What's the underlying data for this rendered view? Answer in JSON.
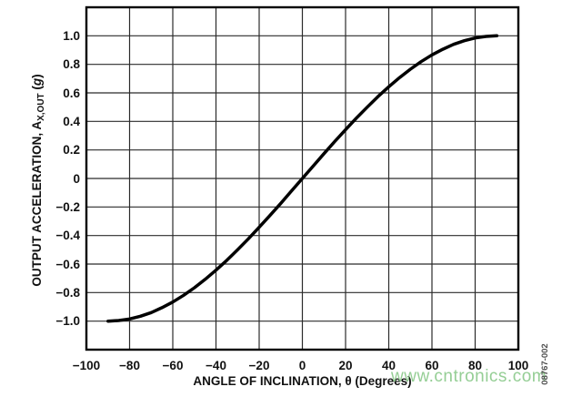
{
  "figure": {
    "watermark": "www.cntronics.com",
    "figure_number": "08767-002",
    "background": "#ffffff"
  },
  "chart_data": {
    "type": "line",
    "title": "",
    "xlabel": "ANGLE OF INCLINATION, θ (Degrees)",
    "ylabel": "OUTPUT ACCELERATION, AX,OUT (g)",
    "ylabel_parts": {
      "main": "OUTPUT ACCELERATION, A",
      "sub": "X,OUT",
      "unit_pre": " (",
      "unit": "g",
      "unit_post": ")"
    },
    "xlim": [
      -100,
      100
    ],
    "ylim": [
      -1.2,
      1.2
    ],
    "grid": true,
    "legend": "none",
    "line_color": "#000000",
    "grid_color": "#2b2b2b",
    "frame_color": "#000000",
    "xticks": [
      {
        "value": -100,
        "label": "−100"
      },
      {
        "value": -80,
        "label": "−80"
      },
      {
        "value": -60,
        "label": "−60"
      },
      {
        "value": -40,
        "label": "−40"
      },
      {
        "value": -20,
        "label": "−20"
      },
      {
        "value": 0,
        "label": "0"
      },
      {
        "value": 20,
        "label": "20"
      },
      {
        "value": 40,
        "label": "40"
      },
      {
        "value": 60,
        "label": "60"
      },
      {
        "value": 80,
        "label": "80"
      },
      {
        "value": 100,
        "label": "100"
      }
    ],
    "yticks": [
      {
        "value": 1.0,
        "label": "1.0"
      },
      {
        "value": 0.8,
        "label": "0.8"
      },
      {
        "value": 0.6,
        "label": "0.6"
      },
      {
        "value": 0.4,
        "label": "0.4"
      },
      {
        "value": 0.2,
        "label": "0.2"
      },
      {
        "value": 0.0,
        "label": "0"
      },
      {
        "value": -0.2,
        "label": "−0.2"
      },
      {
        "value": -0.4,
        "label": "−0.4"
      },
      {
        "value": -0.6,
        "label": "−0.6"
      },
      {
        "value": -0.8,
        "label": "−0.8"
      },
      {
        "value": -1.0,
        "label": "−1.0"
      }
    ],
    "series": [
      {
        "name": "output-acceleration-curve",
        "x": [
          -90,
          -85,
          -80,
          -75,
          -70,
          -65,
          -60,
          -55,
          -50,
          -45,
          -40,
          -35,
          -30,
          -25,
          -20,
          -15,
          -10,
          -5,
          0,
          5,
          10,
          15,
          20,
          25,
          30,
          35,
          40,
          45,
          50,
          55,
          60,
          65,
          70,
          75,
          80,
          85,
          90
        ],
        "y": [
          -1.0,
          -0.996,
          -0.985,
          -0.966,
          -0.94,
          -0.906,
          -0.866,
          -0.819,
          -0.766,
          -0.707,
          -0.643,
          -0.574,
          -0.5,
          -0.423,
          -0.342,
          -0.259,
          -0.174,
          -0.087,
          0.0,
          0.087,
          0.174,
          0.259,
          0.342,
          0.423,
          0.5,
          0.574,
          0.643,
          0.707,
          0.766,
          0.819,
          0.866,
          0.906,
          0.94,
          0.966,
          0.985,
          0.996,
          1.0
        ]
      }
    ]
  }
}
